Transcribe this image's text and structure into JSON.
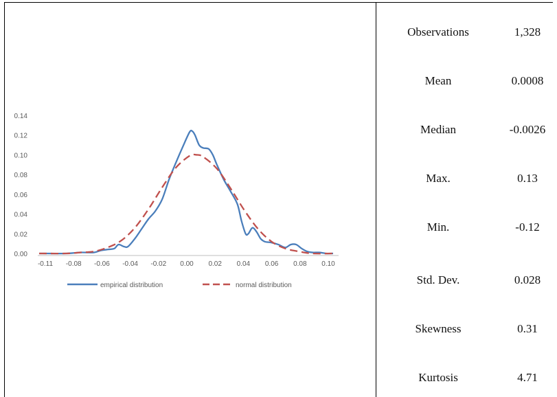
{
  "chart_data": {
    "type": "line",
    "title": "",
    "xlabel": "",
    "ylabel": "",
    "xlim": [
      -0.11,
      0.105
    ],
    "ylim": [
      0,
      0.14
    ],
    "x_ticks": [
      "-0.11",
      "-0.08",
      "-0.06",
      "-0.04",
      "-0.02",
      "0.00",
      "0.02",
      "0.04",
      "0.06",
      "0.08",
      "0.10"
    ],
    "y_ticks": [
      "0.00",
      "0.02",
      "0.04",
      "0.06",
      "0.08",
      "0.10",
      "0.12",
      "0.14"
    ],
    "grid": false,
    "legend_position": "bottom",
    "series": [
      {
        "name": "empirical distribution",
        "color": "#4a7ebb",
        "dash": "solid",
        "points": [
          [
            -0.11,
            0.0
          ],
          [
            -0.09,
            0.0
          ],
          [
            -0.08,
            0.001
          ],
          [
            -0.07,
            0.001
          ],
          [
            -0.065,
            0.003
          ],
          [
            -0.06,
            0.004
          ],
          [
            -0.055,
            0.005
          ],
          [
            -0.052,
            0.009
          ],
          [
            -0.048,
            0.007
          ],
          [
            -0.045,
            0.007
          ],
          [
            -0.04,
            0.015
          ],
          [
            -0.035,
            0.025
          ],
          [
            -0.03,
            0.035
          ],
          [
            -0.025,
            0.043
          ],
          [
            -0.02,
            0.055
          ],
          [
            -0.015,
            0.075
          ],
          [
            -0.01,
            0.092
          ],
          [
            -0.005,
            0.108
          ],
          [
            0.0,
            0.123
          ],
          [
            0.002,
            0.124
          ],
          [
            0.004,
            0.12
          ],
          [
            0.007,
            0.11
          ],
          [
            0.01,
            0.107
          ],
          [
            0.014,
            0.106
          ],
          [
            0.017,
            0.1
          ],
          [
            0.02,
            0.09
          ],
          [
            0.025,
            0.075
          ],
          [
            0.03,
            0.063
          ],
          [
            0.035,
            0.05
          ],
          [
            0.038,
            0.033
          ],
          [
            0.041,
            0.02
          ],
          [
            0.043,
            0.02
          ],
          [
            0.046,
            0.026
          ],
          [
            0.049,
            0.022
          ],
          [
            0.052,
            0.015
          ],
          [
            0.055,
            0.012
          ],
          [
            0.06,
            0.011
          ],
          [
            0.065,
            0.009
          ],
          [
            0.07,
            0.006
          ],
          [
            0.074,
            0.009
          ],
          [
            0.078,
            0.009
          ],
          [
            0.082,
            0.005
          ],
          [
            0.086,
            0.002
          ],
          [
            0.09,
            0.001
          ],
          [
            0.095,
            0.001
          ],
          [
            0.1,
            0.0
          ],
          [
            0.105,
            0.0
          ]
        ]
      },
      {
        "name": "normal distribution",
        "color": "#c0504d",
        "dash": "dashed",
        "points": [
          [
            -0.11,
            0.0
          ],
          [
            -0.09,
            0.0
          ],
          [
            -0.08,
            0.001
          ],
          [
            -0.07,
            0.002
          ],
          [
            -0.06,
            0.006
          ],
          [
            -0.05,
            0.013
          ],
          [
            -0.04,
            0.026
          ],
          [
            -0.03,
            0.045
          ],
          [
            -0.02,
            0.067
          ],
          [
            -0.01,
            0.087
          ],
          [
            0.0,
            0.099
          ],
          [
            0.005,
            0.1
          ],
          [
            0.01,
            0.098
          ],
          [
            0.02,
            0.086
          ],
          [
            0.03,
            0.066
          ],
          [
            0.04,
            0.044
          ],
          [
            0.05,
            0.025
          ],
          [
            0.06,
            0.012
          ],
          [
            0.07,
            0.005
          ],
          [
            0.08,
            0.002
          ],
          [
            0.09,
            0.0
          ],
          [
            0.105,
            0.0
          ]
        ]
      }
    ]
  },
  "stats": [
    {
      "label": "Observations",
      "value": "1,328"
    },
    {
      "label": "Mean",
      "value": "0.0008"
    },
    {
      "label": "Median",
      "value": "-0.0026"
    },
    {
      "label": "Max.",
      "value": "0.13"
    },
    {
      "label": "Min.",
      "value": "-0.12"
    },
    {
      "label": "Std. Dev.",
      "value": "0.028"
    },
    {
      "label": "Skewness",
      "value": "0.31"
    },
    {
      "label": "Kurtosis",
      "value": "4.71"
    }
  ]
}
